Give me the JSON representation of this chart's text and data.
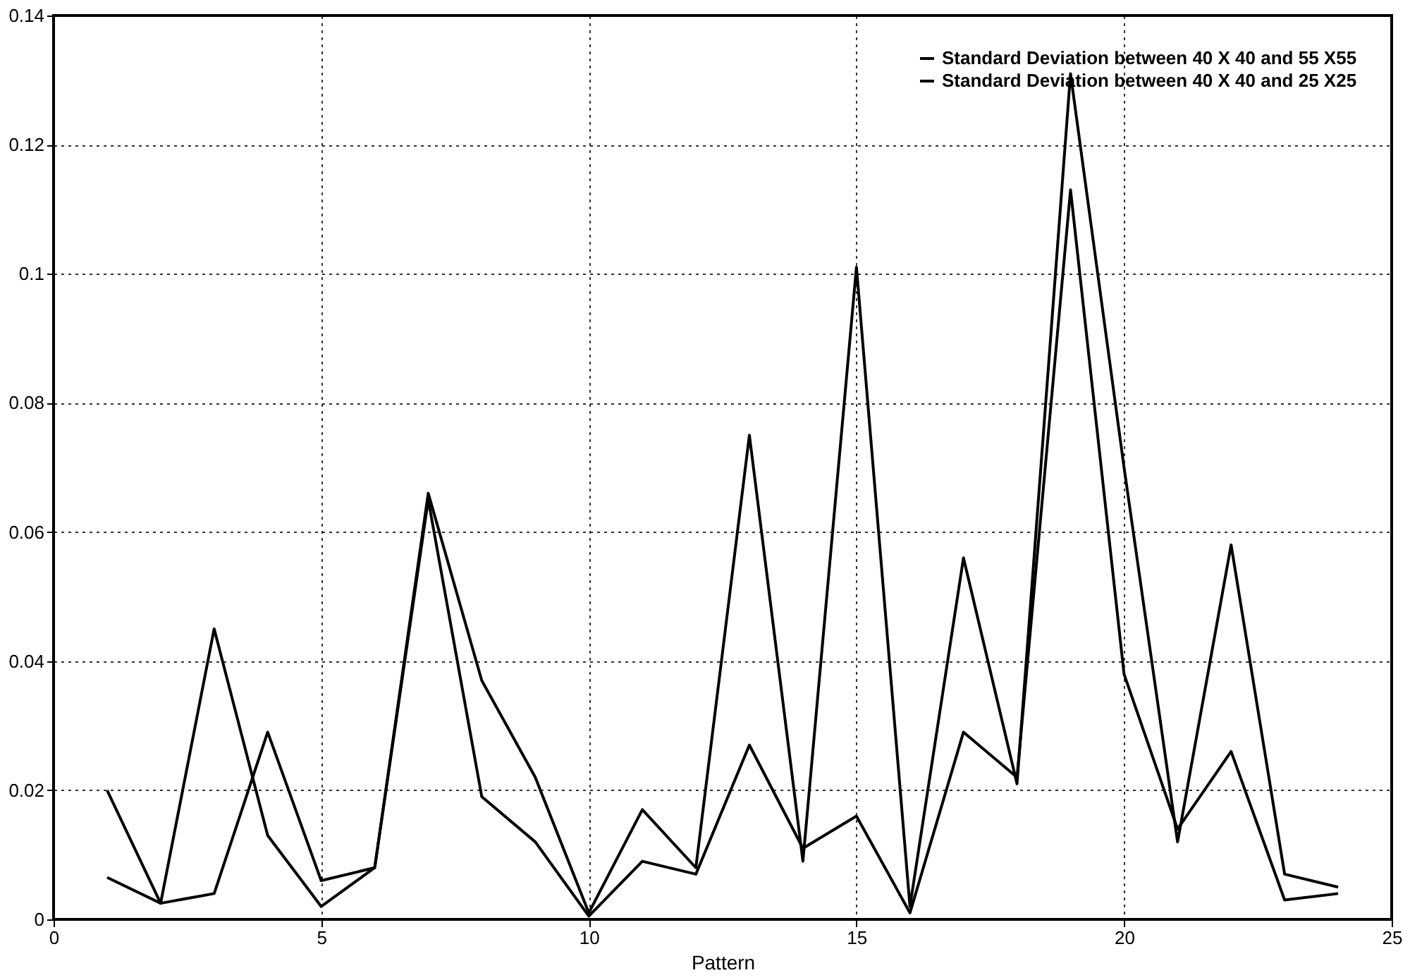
{
  "chart_data": {
    "type": "line",
    "xlabel": "Pattern",
    "x": [
      1,
      2,
      3,
      4,
      5,
      6,
      7,
      8,
      9,
      10,
      11,
      12,
      13,
      14,
      15,
      16,
      17,
      18,
      19,
      20,
      21,
      22,
      23,
      24
    ],
    "series": [
      {
        "name": "Standard Deviation between 40 X 40 and 55 X55",
        "color": "#000000",
        "values": [
          0.02,
          0.0025,
          0.045,
          0.013,
          0.002,
          0.008,
          0.066,
          0.037,
          0.022,
          0.001,
          0.017,
          0.008,
          0.075,
          0.009,
          0.101,
          0.002,
          0.056,
          0.021,
          0.131,
          0.07,
          0.012,
          0.058,
          0.007,
          0.005
        ]
      },
      {
        "name": "Standard Deviation between 40 X 40 and 25 X25",
        "color": "#000000",
        "values": [
          0.0065,
          0.0025,
          0.004,
          0.029,
          0.006,
          0.008,
          0.065,
          0.019,
          0.012,
          0.0005,
          0.009,
          0.007,
          0.027,
          0.011,
          0.016,
          0.001,
          0.029,
          0.022,
          0.113,
          0.038,
          0.014,
          0.026,
          0.003,
          0.004
        ]
      }
    ],
    "xlim": [
      0,
      25
    ],
    "xticks": [
      0,
      5,
      10,
      15,
      20,
      25
    ],
    "ylim": [
      0,
      0.14
    ],
    "yticks": [
      0,
      0.02,
      0.04,
      0.06,
      0.08,
      0.1,
      0.12,
      0.14
    ],
    "grid": true,
    "legend": "top right",
    "marker": "none",
    "line_style": "solid"
  }
}
